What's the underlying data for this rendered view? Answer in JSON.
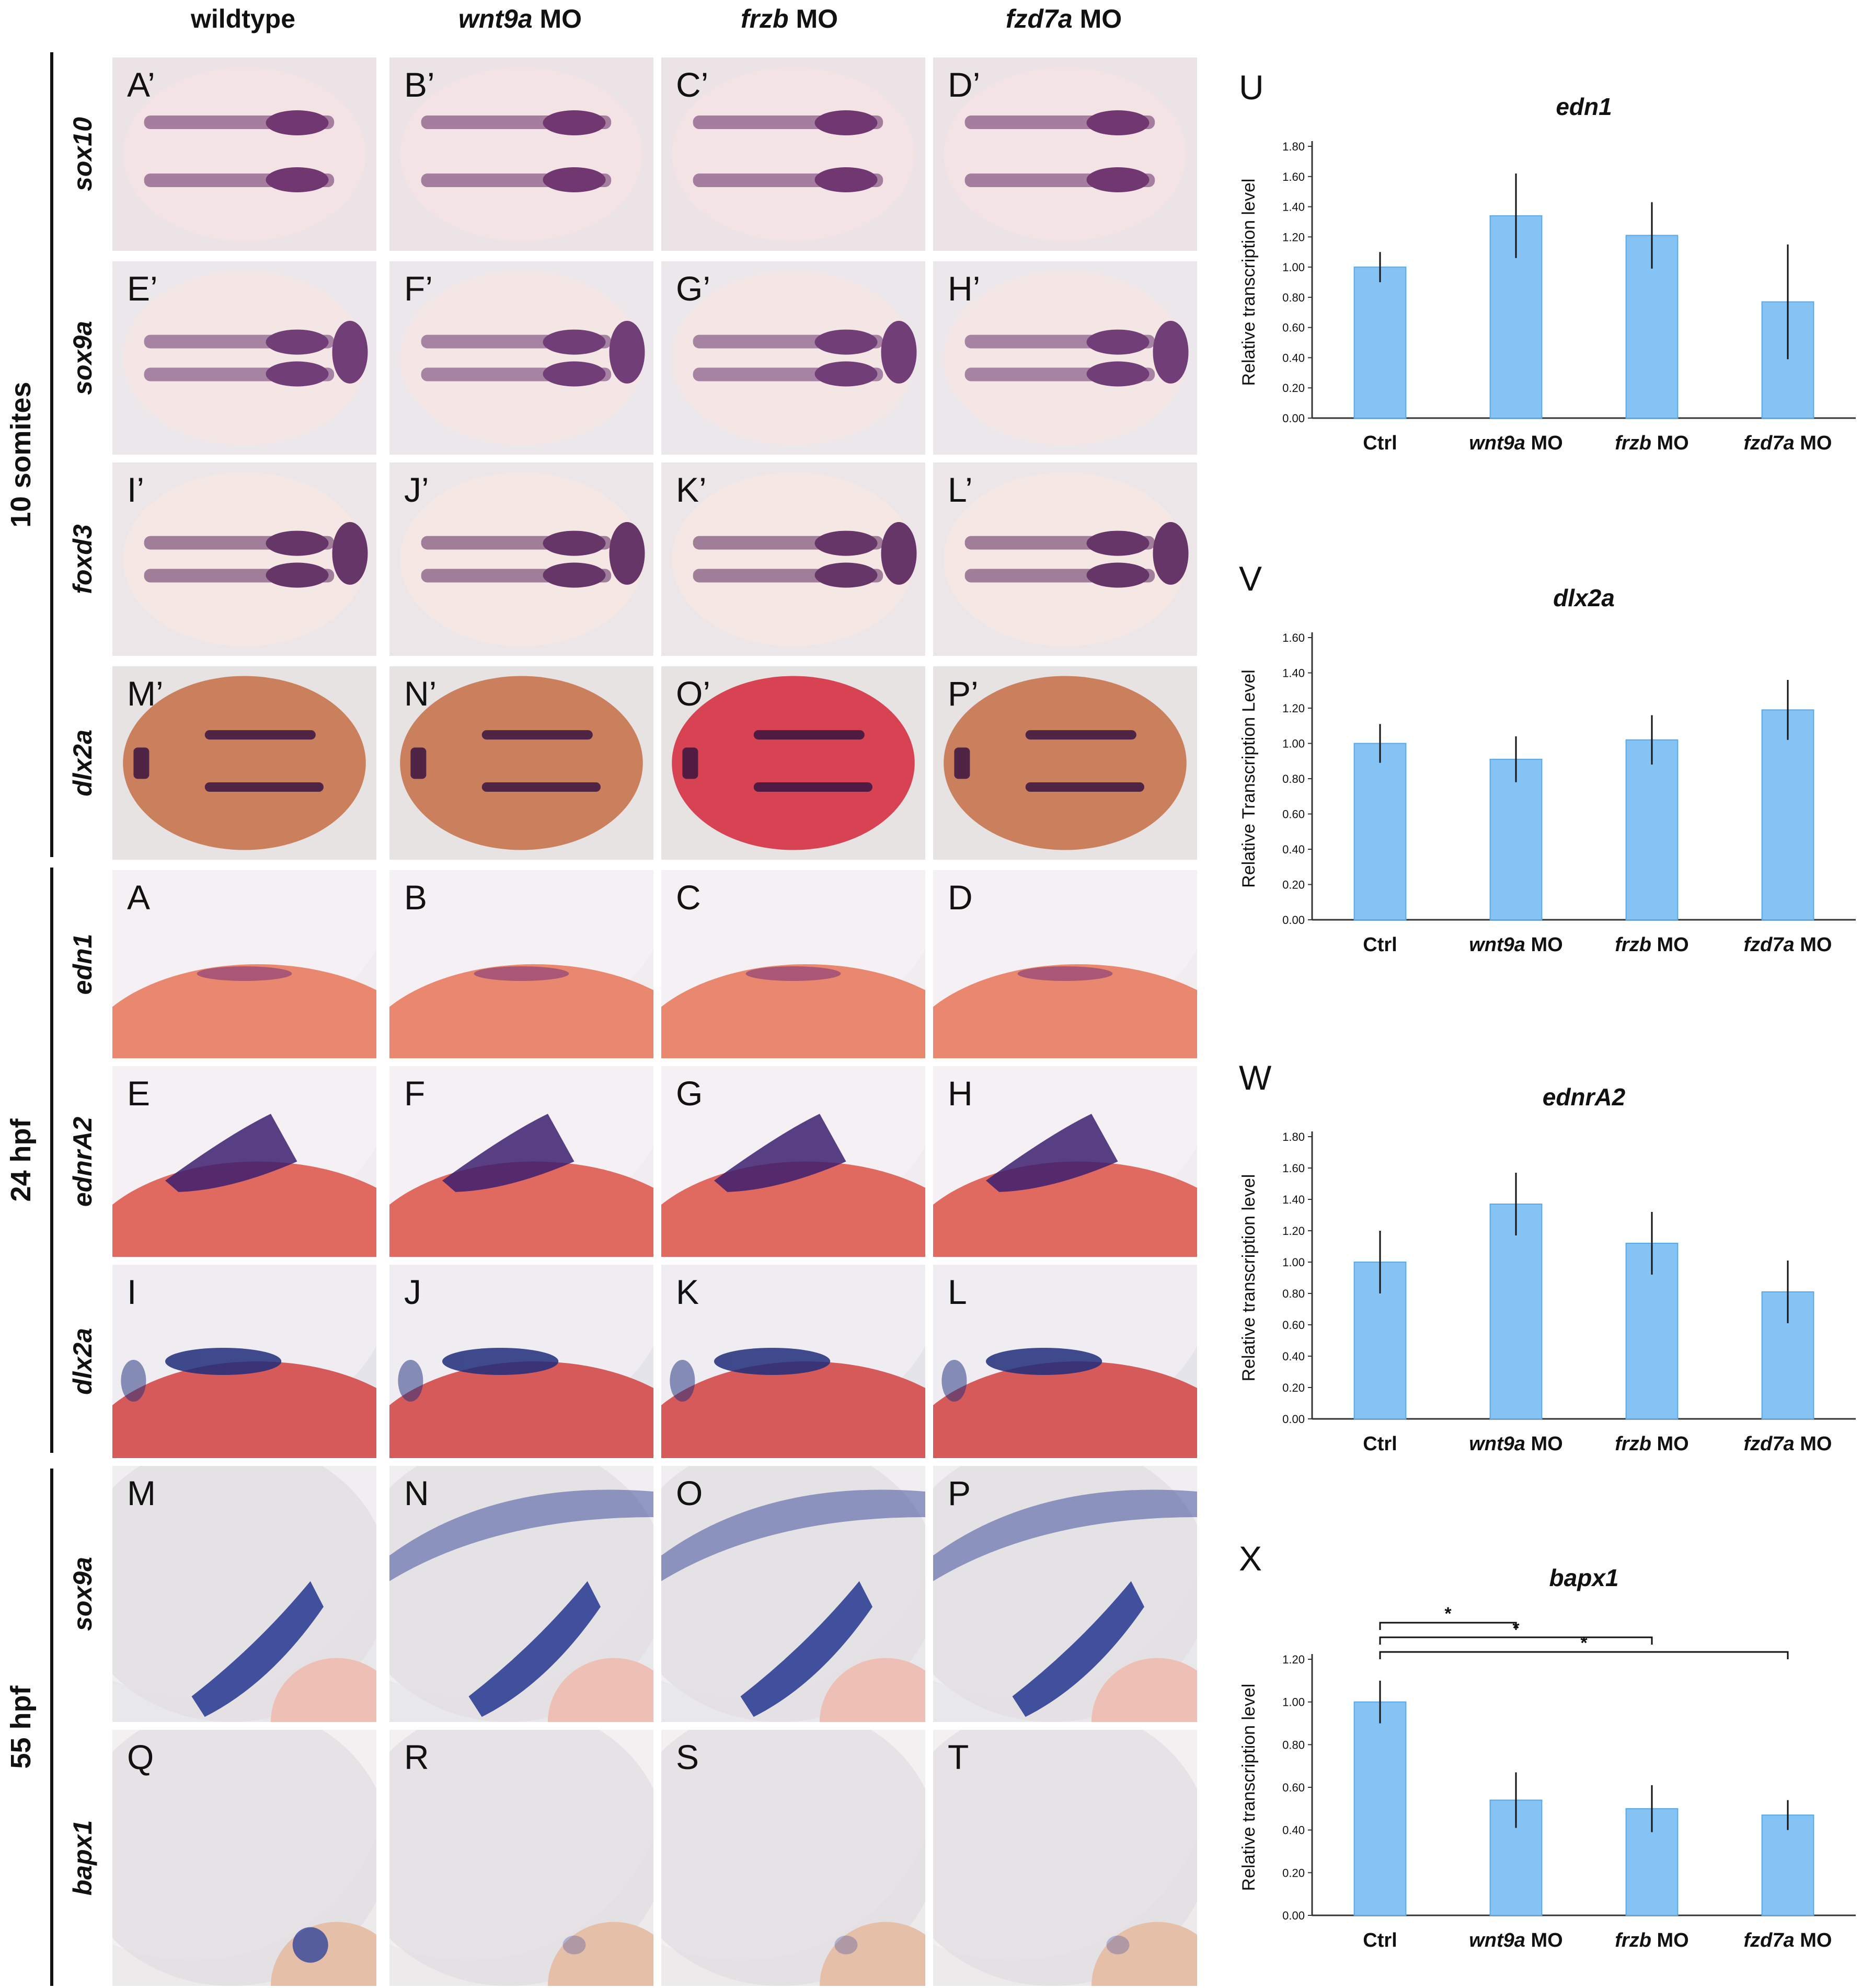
{
  "columns": [
    {
      "gene": "",
      "text": "wildtype"
    },
    {
      "gene": "wnt9a",
      "text": " MO"
    },
    {
      "gene": "frzb",
      "text": " MO"
    },
    {
      "gene": "fzd7a",
      "text": " MO"
    }
  ],
  "stages": {
    "s10": "10 somites",
    "h24": "24 hpf",
    "h55": "55 hpf"
  },
  "row_genes": [
    "sox10",
    "sox9a",
    "foxd3",
    "dlx2a",
    "edn1",
    "ednrA2",
    "dlx2a",
    "sox9a",
    "bapx1"
  ],
  "panel_labels": [
    [
      "A’",
      "B’",
      "C’",
      "D’"
    ],
    [
      "E’",
      "F’",
      "G’",
      "H’"
    ],
    [
      "I’",
      "J’",
      "K’",
      "L’"
    ],
    [
      "M’",
      "N’",
      "O’",
      "P’"
    ],
    [
      "A",
      "B",
      "C",
      "D"
    ],
    [
      "E",
      "F",
      "G",
      "H"
    ],
    [
      "I",
      "J",
      "K",
      "L"
    ],
    [
      "M",
      "N",
      "O",
      "P"
    ],
    [
      "Q",
      "R",
      "S",
      "T"
    ]
  ],
  "colors": {
    "bar": "#86c3f5",
    "bar_edge": "#5aa9e6",
    "purple": "#5a1a5e",
    "blue": "#1f3590",
    "red": "#d85a5a"
  },
  "chart_data": [
    {
      "panel": "U",
      "type": "bar",
      "title": "edn1",
      "ylabel": "Relative transcription level",
      "categories": [
        "Ctrl",
        "wnt9a MO",
        "frzb MO",
        "fzd7a MO"
      ],
      "values": [
        1.0,
        1.34,
        1.21,
        0.77
      ],
      "errors": [
        0.1,
        0.28,
        0.22,
        0.38
      ],
      "ylim": [
        0,
        1.8
      ],
      "yticks": [
        "0.00",
        "0.20",
        "0.40",
        "0.60",
        "0.80",
        "1.00",
        "1.20",
        "1.40",
        "1.60",
        "1.80"
      ],
      "significance": []
    },
    {
      "panel": "V",
      "type": "bar",
      "title": "dlx2a",
      "ylabel": "Relative Transcription Level",
      "categories": [
        "Ctrl",
        "wnt9a MO",
        "frzb MO",
        "fzd7a MO"
      ],
      "values": [
        1.0,
        0.91,
        1.02,
        1.19
      ],
      "errors": [
        0.11,
        0.13,
        0.14,
        0.17
      ],
      "ylim": [
        0,
        1.6
      ],
      "yticks": [
        "0.00",
        "0.20",
        "0.40",
        "0.60",
        "0.80",
        "1.00",
        "1.20",
        "1.40",
        "1.60"
      ],
      "significance": []
    },
    {
      "panel": "W",
      "type": "bar",
      "title": "ednrA2",
      "ylabel": "Relative transcription level",
      "categories": [
        "Ctrl",
        "wnt9a MO",
        "frzb MO",
        "fzd7a MO"
      ],
      "values": [
        1.0,
        1.37,
        1.12,
        0.81
      ],
      "errors": [
        0.2,
        0.2,
        0.2,
        0.2
      ],
      "ylim": [
        0,
        1.8
      ],
      "yticks": [
        "0.00",
        "0.20",
        "0.40",
        "0.60",
        "0.80",
        "1.00",
        "1.20",
        "1.40",
        "1.60",
        "1.80"
      ],
      "significance": []
    },
    {
      "panel": "X",
      "type": "bar",
      "title": "bapx1",
      "ylabel": "Relative transcription level",
      "categories": [
        "Ctrl",
        "wnt9a MO",
        "frzb MO",
        "fzd7a MO"
      ],
      "values": [
        1.0,
        0.54,
        0.5,
        0.47
      ],
      "errors": [
        0.1,
        0.13,
        0.11,
        0.07
      ],
      "ylim": [
        0,
        1.2
      ],
      "yticks": [
        "0.00",
        "0.20",
        "0.40",
        "0.60",
        "0.80",
        "1.00",
        "1.20"
      ],
      "significance": [
        {
          "from": 0,
          "to": 1,
          "mark": "*"
        },
        {
          "from": 0,
          "to": 2,
          "mark": "*"
        },
        {
          "from": 0,
          "to": 3,
          "mark": "*"
        }
      ]
    }
  ]
}
